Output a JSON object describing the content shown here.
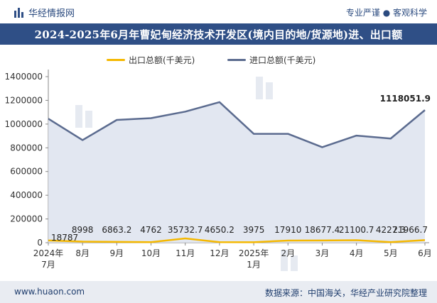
{
  "header": {
    "site_name": "华经情报网",
    "tagline": "专业严谨 ● 客观科学"
  },
  "footer": {
    "url": "www.huaon.com",
    "source": "数据来源：中国海关，华经产业研究院整理"
  },
  "colors": {
    "title_bg": "#2f4f86",
    "export_line": "#f5b800",
    "import_line": "#5b6b8f",
    "import_area": "#dde3ee"
  },
  "chart_data": {
    "type": "line",
    "title": "2024-2025年6月年曹妃甸经济技术开发区(境内目的地/货源地)进、出口额",
    "categories": [
      "2024年\n7月",
      "8月",
      "9月",
      "10月",
      "11月",
      "12月",
      "2025年\n1月",
      "2月",
      "3月",
      "4月",
      "5月",
      "6月"
    ],
    "ylim": [
      0,
      1400000
    ],
    "yticks": [
      0,
      200000,
      400000,
      600000,
      800000,
      1000000,
      1200000,
      1400000
    ],
    "grid": false,
    "legend_position": "top",
    "series": [
      {
        "name": "出口总额(千美元)",
        "values": [
          18787,
          8998,
          6863.2,
          4762,
          35732.7,
          4650.2,
          3975,
          17910,
          18677.4,
          21100.7,
          4227.3,
          21966.7
        ],
        "labels": [
          "18787",
          "8998",
          "6863.2",
          "4762",
          "35732.7",
          "4650.2",
          "3975",
          "17910",
          "18677.4",
          "21100.7",
          "4227.3",
          "21966.7"
        ]
      },
      {
        "name": "进口总额(千美元)",
        "values": [
          1045000,
          865000,
          1035000,
          1050000,
          1105000,
          1185000,
          918000,
          918000,
          805000,
          903000,
          878000,
          1118051.9
        ],
        "end_label": "1118051.9"
      }
    ]
  }
}
